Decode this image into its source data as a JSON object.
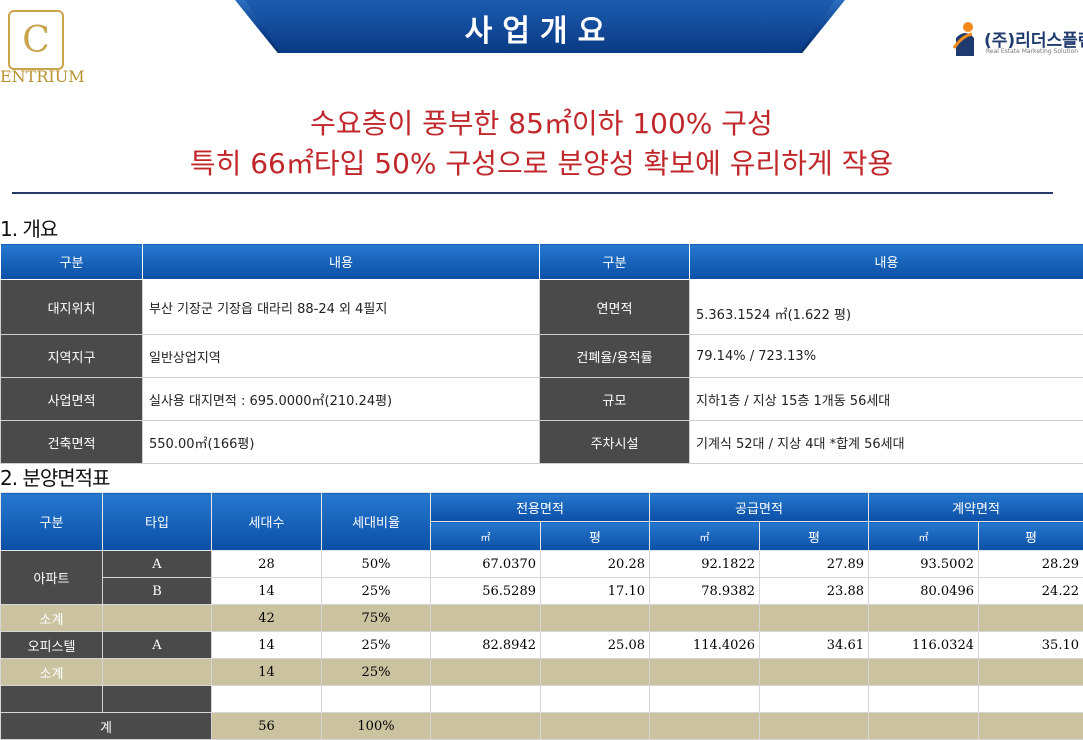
{
  "header": {
    "title": "사업개요",
    "logo_left": "ENTRIUM",
    "logo_right": "(주)리더스플랜",
    "logo_right_sub": "Real Estate Marketing Solution"
  },
  "headline": {
    "line1": "수요층이 풍부한 85㎡이하 100% 구성",
    "line2": "특히 66㎡타입 50% 구성으로 분양성 확보에 유리하게 작용"
  },
  "section1": {
    "title": "1. 개요",
    "headers": [
      "구분",
      "내용",
      "구분",
      "내용"
    ],
    "rows": [
      {
        "l1": "대지위치",
        "v1": "부산 기장군 기장읍 대라리 88-24 외 4필지",
        "l2": "연면적",
        "v2": "5.363.1524 ㎡(1.622 평)"
      },
      {
        "l1": "지역지구",
        "v1": "일반상업지역",
        "l2": "건폐율/용적률",
        "v2": "79.14% / 723.13%"
      },
      {
        "l1": "사업면적",
        "v1": "실사용 대지면적 : 695.0000㎡(210.24평)",
        "l2": "규모",
        "v2": "지하1층 / 지상 15층 1개동 56세대"
      },
      {
        "l1": "건축면적",
        "v1": "550.00㎡(166평)",
        "l2": "주차시설",
        "v2": "기계식 52대 / 지상 4대  *합계 56세대"
      }
    ]
  },
  "section2": {
    "title": "2. 분양면적표",
    "headers": {
      "category": "구분",
      "type": "타입",
      "units": "세대수",
      "ratio": "세대비율",
      "exclusive": "전용면적",
      "supply": "공급면적",
      "contract": "계약면적",
      "sqm": "㎡",
      "pyeong": "평"
    },
    "apartment": {
      "label": "아파트",
      "rows": [
        {
          "type": "A",
          "units": "28",
          "ratio": "50%",
          "ex_m": "67.0370",
          "ex_p": "20.28",
          "su_m": "92.1822",
          "su_p": "27.89",
          "co_m": "93.5002",
          "co_p": "28.29"
        },
        {
          "type": "B",
          "units": "14",
          "ratio": "25%",
          "ex_m": "56.5289",
          "ex_p": "17.10",
          "su_m": "78.9382",
          "su_p": "23.88",
          "co_m": "80.0496",
          "co_p": "24.22"
        }
      ]
    },
    "subtotal1": {
      "label": "소계",
      "units": "42",
      "ratio": "75%"
    },
    "officetel": {
      "label": "오피스텔",
      "type": "A",
      "units": "14",
      "ratio": "25%",
      "ex_m": "82.8942",
      "ex_p": "25.08",
      "su_m": "114.4026",
      "su_p": "34.61",
      "co_m": "116.0324",
      "co_p": "35.10"
    },
    "subtotal2": {
      "label": "소계",
      "units": "14",
      "ratio": "25%"
    },
    "total": {
      "label": "계",
      "units": "56",
      "ratio": "100%"
    }
  }
}
